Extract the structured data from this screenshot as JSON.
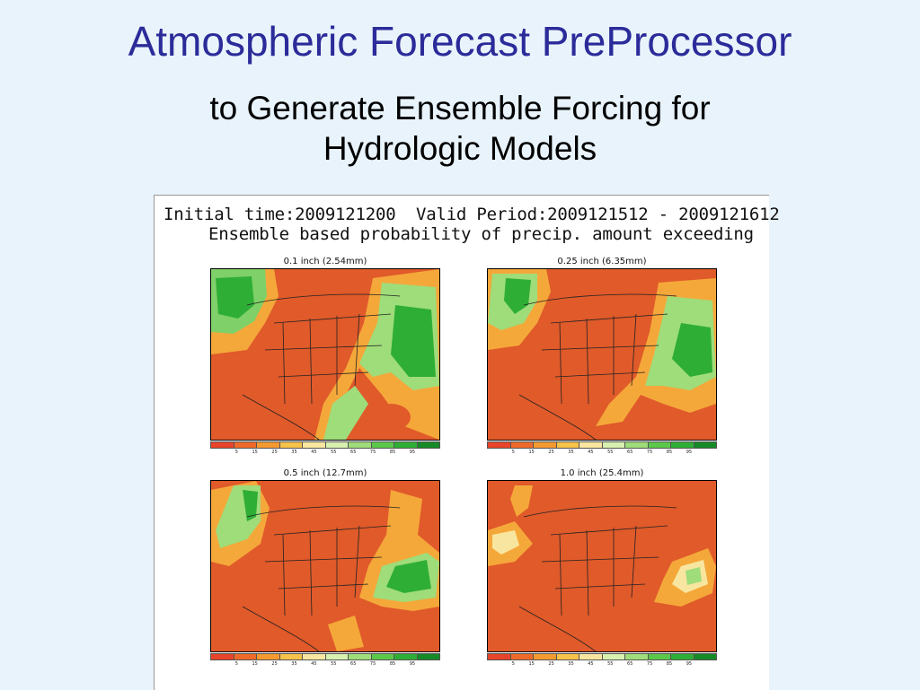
{
  "slide": {
    "title": "Atmospheric Forecast PreProcessor",
    "subtitle_line1": "to Generate Ensemble Forcing for",
    "subtitle_line2": "Hydrologic Models"
  },
  "figure": {
    "header_line1": "Initial time:2009121200  Valid Period:2009121512 - 2009121612",
    "header_line2": "Ensemble based probability of precip. amount exceeding",
    "panels": [
      {
        "label": "0.1 inch (2.54mm)"
      },
      {
        "label": "0.25 inch (6.35mm)"
      },
      {
        "label": "0.5 inch (12.7mm)"
      },
      {
        "label": "1.0 inch (25.4mm)"
      }
    ],
    "colorbar": {
      "ticks": [
        "5",
        "15",
        "25",
        "35",
        "45",
        "55",
        "65",
        "75",
        "85",
        "95"
      ],
      "colors": [
        "#e8442a",
        "#ef6a2a",
        "#f59a30",
        "#f7c24a",
        "#f8e6a0",
        "#d8f0b0",
        "#9fdc7a",
        "#5cc84a",
        "#2fae36",
        "#158a26"
      ]
    }
  },
  "colors": {
    "title": "#2b2b9a",
    "background": "#e8f3fb",
    "map_low": "#e05a2a",
    "map_high": "#2fae36"
  }
}
